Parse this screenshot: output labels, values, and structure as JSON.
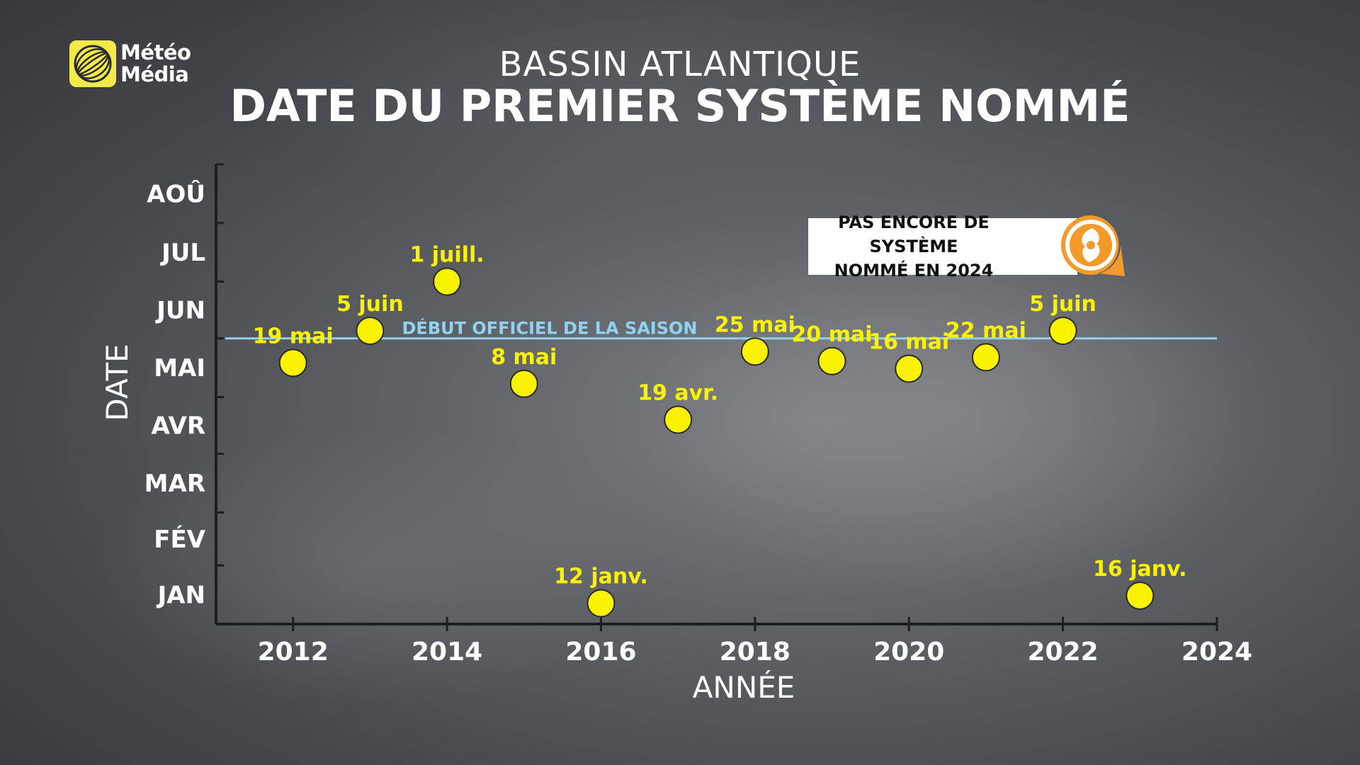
{
  "brand": {
    "name_line1": "Météo",
    "name_line2": "Média",
    "icon": "globe-logo-icon"
  },
  "header": {
    "subtitle": "BASSIN ATLANTIQUE",
    "title": "DATE DU PREMIER SYSTÈME NOMMÉ"
  },
  "notice": {
    "text_line1": "PAS ENCORE DE SYSTÈME",
    "text_line2": "NOMMÉ EN 2024",
    "icon": "hurricane-icon",
    "icon_color": "#f39a2b"
  },
  "colors": {
    "point": "#fbf200",
    "label": "#fbf200",
    "season_line": "#8fd3f0",
    "axis": "#1e1e1e",
    "text": "#ffffff"
  },
  "chart_data": {
    "type": "scatter",
    "title": "DATE DU PREMIER SYSTÈME NOMMÉ",
    "subtitle": "BASSIN ATLANTIQUE",
    "xlabel": "ANNÉE",
    "ylabel": "DATE",
    "xlim": [
      2011,
      2024
    ],
    "xticks": [
      2012,
      2014,
      2016,
      2018,
      2020,
      2022,
      2024
    ],
    "ylim": [
      "01-01",
      "08-31"
    ],
    "yticks": [
      "JAN",
      "FÉV",
      "MAR",
      "AVR",
      "MAI",
      "JUN",
      "JUL",
      "AOÛ"
    ],
    "reference_line": {
      "date": "06-01",
      "label": "DÉBUT OFFICIEL DE LA SAISON"
    },
    "points": [
      {
        "year": 2012,
        "date": "05-19",
        "label": "19 mai"
      },
      {
        "year": 2013,
        "date": "06-05",
        "label": "5 juin"
      },
      {
        "year": 2014,
        "date": "07-01",
        "label": "1 juill."
      },
      {
        "year": 2015,
        "date": "05-08",
        "label": "8 mai"
      },
      {
        "year": 2016,
        "date": "01-12",
        "label": "12 janv."
      },
      {
        "year": 2017,
        "date": "04-19",
        "label": "19 avr."
      },
      {
        "year": 2018,
        "date": "05-25",
        "label": "25 mai"
      },
      {
        "year": 2019,
        "date": "05-20",
        "label": "20 mai"
      },
      {
        "year": 2020,
        "date": "05-16",
        "label": "16 mai"
      },
      {
        "year": 2021,
        "date": "05-22",
        "label": "22 mai"
      },
      {
        "year": 2022,
        "date": "06-05",
        "label": "5 juin"
      },
      {
        "year": 2023,
        "date": "01-16",
        "label": "16 janv."
      }
    ]
  }
}
